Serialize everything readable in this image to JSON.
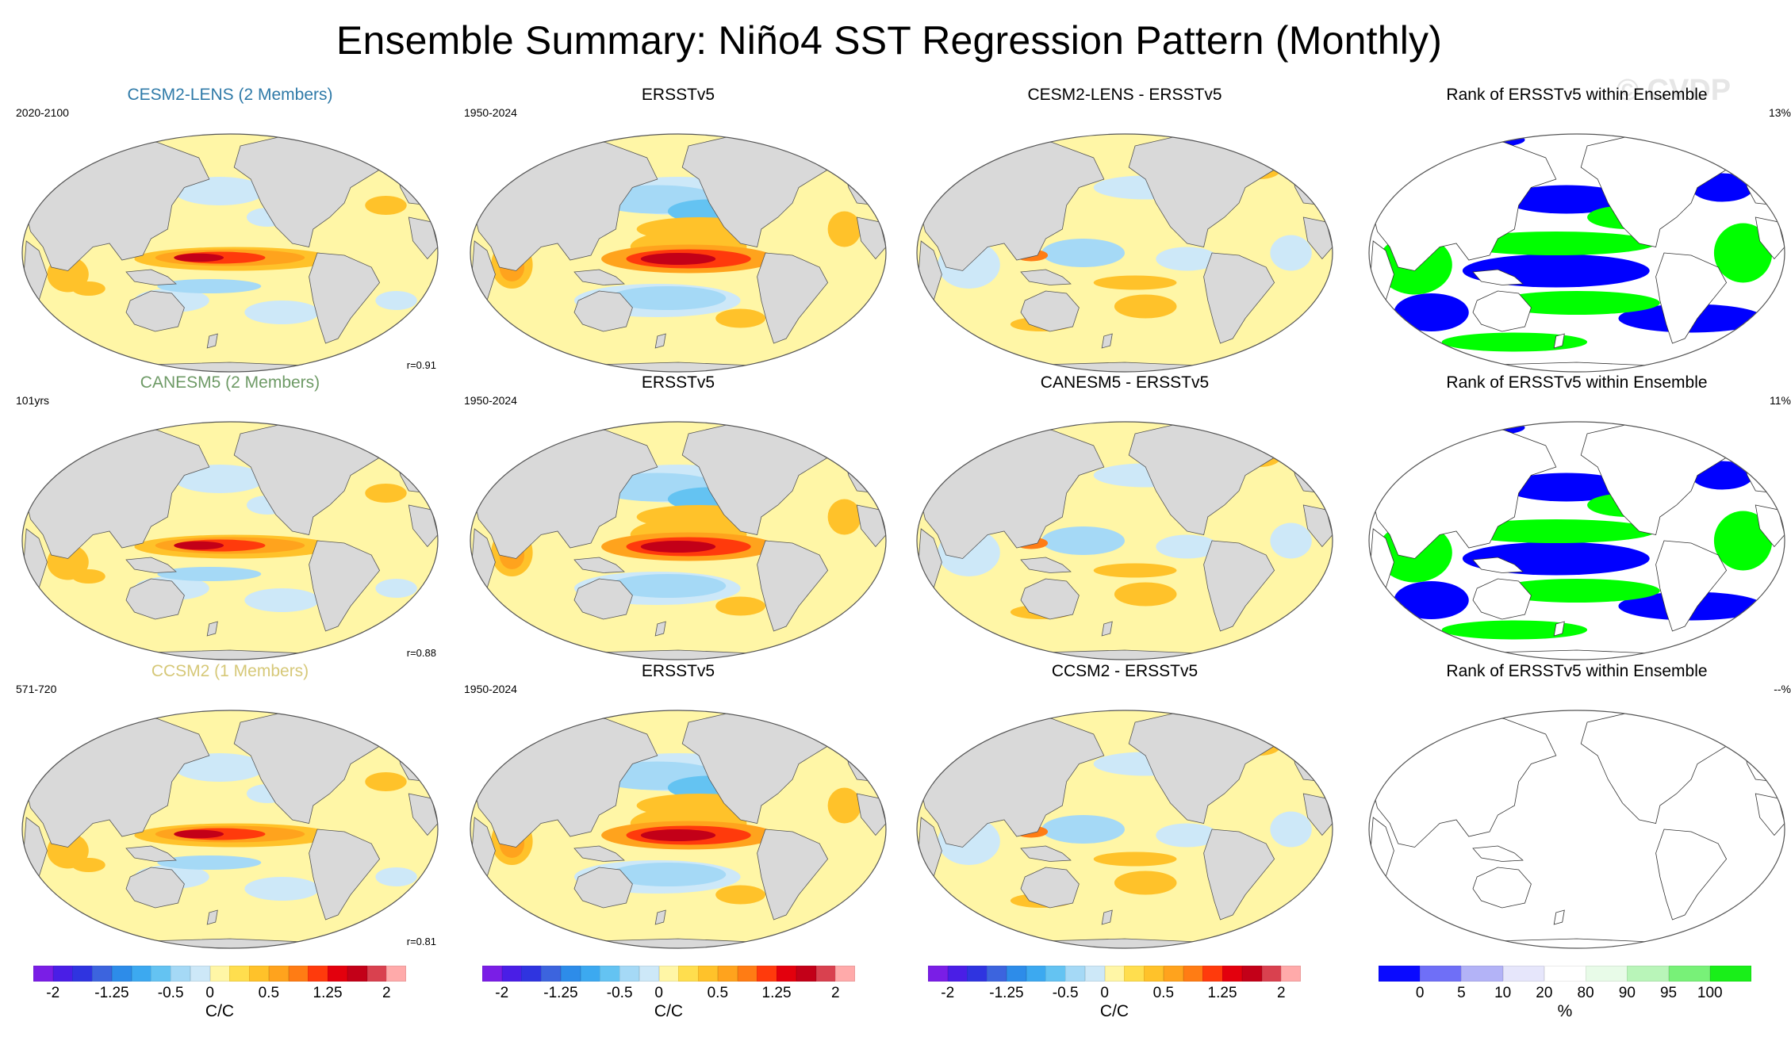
{
  "title": "Ensemble Summary: Niño4 SST Regression Pattern (Monthly)",
  "watermark": "© CVDP",
  "colors": {
    "cesm2": "#2f7aa8",
    "canesm5": "#6e9a66",
    "ccsm2": "#d6c878",
    "land": "#d9d9d9",
    "rank_blue": "#0000ff",
    "rank_green": "#00ff00"
  },
  "rows": [
    {
      "model_title": "CESM2-LENS (2 Members)",
      "model_period": "2020-2100",
      "model_corr": "r=0.91",
      "obs_title": "ERSSTv5",
      "obs_period": "1950-2024",
      "diff_title": "CESM2-LENS - ERSSTv5",
      "rank_title": "Rank of ERSSTv5 within Ensemble",
      "rank_pct": "13%"
    },
    {
      "model_title": "CANESM5 (2 Members)",
      "model_period": "101yrs",
      "model_corr": "r=0.88",
      "obs_title": "ERSSTv5",
      "obs_period": "1950-2024",
      "diff_title": "CANESM5 - ERSSTv5",
      "rank_title": "Rank of ERSSTv5 within Ensemble",
      "rank_pct": "11%"
    },
    {
      "model_title": "CCSM2 (1 Members)",
      "model_period": "571-720",
      "model_corr": "r=0.81",
      "obs_title": "ERSSTv5",
      "obs_period": "1950-2024",
      "diff_title": "CCSM2 - ERSSTv5",
      "rank_title": "Rank of ERSSTv5 within Ensemble",
      "rank_pct": "--%"
    }
  ],
  "chart_data": {
    "type": "heatmap",
    "projection": "robinson-like, Pacific-centred",
    "regression_colorbar": {
      "unit_label": "C/C",
      "tick_labels": [
        "-2",
        "-1.25",
        "-0.5",
        "0",
        "0.5",
        "1.25",
        "2"
      ],
      "colors": [
        "#7a1ee6",
        "#4a1ee6",
        "#2f34e0",
        "#3c64de",
        "#2d8ce9",
        "#3ca9f0",
        "#64c3f2",
        "#a5d9f6",
        "#cde8f8",
        "#fff6a6",
        "#ffde4e",
        "#ffc22a",
        "#ffa31d",
        "#ff7c14",
        "#ff3a0c",
        "#e3000d",
        "#c30018",
        "#d9414f",
        "#ffaaaa"
      ]
    },
    "rank_colorbar": {
      "unit_label": "%",
      "tick_labels": [
        "0",
        "5",
        "10",
        "20",
        "80",
        "90",
        "95",
        "100"
      ],
      "colors": [
        "#0a0aff",
        "#6f6ff7",
        "#b3b3f7",
        "#e6e6fb",
        "#ffffff",
        "#e8fbe8",
        "#b9f5b9",
        "#78f178",
        "#19ef19"
      ]
    }
  }
}
